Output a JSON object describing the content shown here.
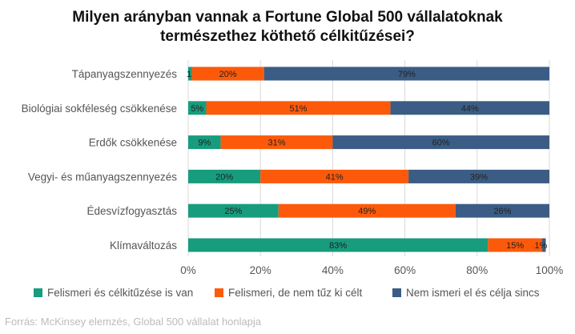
{
  "chart_data": {
    "type": "bar",
    "orientation": "horizontal",
    "stacked": true,
    "percent": true,
    "title_lines": [
      "Milyen arányban vannak a Fortune Global 500 vállalatoknak",
      "természethez köthető célkitűzései?"
    ],
    "categories": [
      "Tápanyagszennyezés",
      "Biológiai sokféleség csökkenése",
      "Erdők csökkenése",
      "Vegyi- és műanyagszennyezés",
      "Édesvízfogyasztás",
      "Klímaváltozás"
    ],
    "series": [
      {
        "name": "Felismeri és célkitűzése is van",
        "color": "#179c7d",
        "values": [
          1,
          5,
          9,
          20,
          25,
          83
        ]
      },
      {
        "name": "Felismeri, de nem tűz ki célt",
        "color": "#fc5a0a",
        "values": [
          20,
          51,
          31,
          41,
          49,
          15
        ]
      },
      {
        "name": "Nem ismeri el és célja sincs",
        "color": "#3b5c84",
        "values": [
          79,
          44,
          60,
          39,
          26,
          1
        ]
      }
    ],
    "xlim": [
      0,
      100
    ],
    "xticks": [
      "0%",
      "20%",
      "40%",
      "60%",
      "80%",
      "100%"
    ],
    "grid": true,
    "legend_position": "bottom",
    "source": "Forrás: McKinsey elemzés, Global 500 vállalat honlapja"
  }
}
